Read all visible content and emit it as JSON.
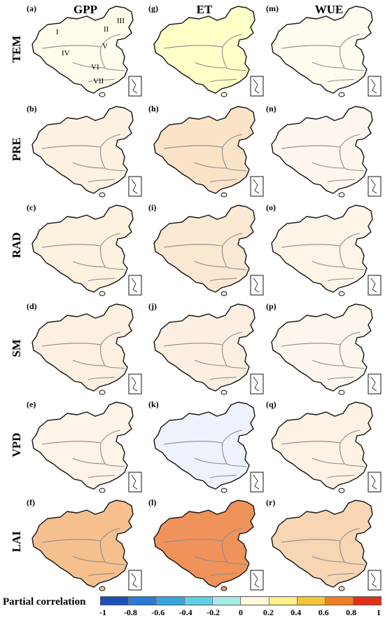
{
  "columns": [
    "GPP",
    "ET",
    "WUE"
  ],
  "rows": [
    "TEM",
    "PRE",
    "RAD",
    "SM",
    "VPD",
    "LAI"
  ],
  "panel_labels": [
    [
      "(a)",
      "(g)",
      "(m)"
    ],
    [
      "(b)",
      "(h)",
      "(n)"
    ],
    [
      "(c)",
      "(i)",
      "(o)"
    ],
    [
      "(d)",
      "(j)",
      "(p)"
    ],
    [
      "(e)",
      "(k)",
      "(q)"
    ],
    [
      "(f)",
      "(l)",
      "(r)"
    ]
  ],
  "regions": [
    "I",
    "II",
    "III",
    "IV",
    "V",
    "VI",
    "VII"
  ],
  "legend": {
    "title": "Partial correlation",
    "ticks": [
      "-1",
      "-0.8",
      "-0.6",
      "-0.4",
      "-0.2",
      "0",
      "0.2",
      "0.4",
      "0.6",
      "0.8",
      "1"
    ],
    "colors": [
      "#1d4fb8",
      "#2a7ad6",
      "#35a6dd",
      "#5fd0e6",
      "#a8ece8",
      "#fff9d8",
      "#fff08a",
      "#f8c437",
      "#ee7e22",
      "#e0301c"
    ]
  },
  "panel_styles": [
    [
      "#fffbea",
      "#ffffc8",
      "#fffcef"
    ],
    [
      "#fdf2e2",
      "#fbe3c8",
      "#fdf6ec"
    ],
    [
      "#fdf1e0",
      "#fbe8d2",
      "#fdf4e8"
    ],
    [
      "#fdf0e0",
      "#fcefe2",
      "#fdf6ec"
    ],
    [
      "#fdf3e8",
      "#eef3fb",
      "#fdf2e4"
    ],
    [
      "#f6c08e",
      "#f0935a",
      "#f8d6b4"
    ]
  ]
}
